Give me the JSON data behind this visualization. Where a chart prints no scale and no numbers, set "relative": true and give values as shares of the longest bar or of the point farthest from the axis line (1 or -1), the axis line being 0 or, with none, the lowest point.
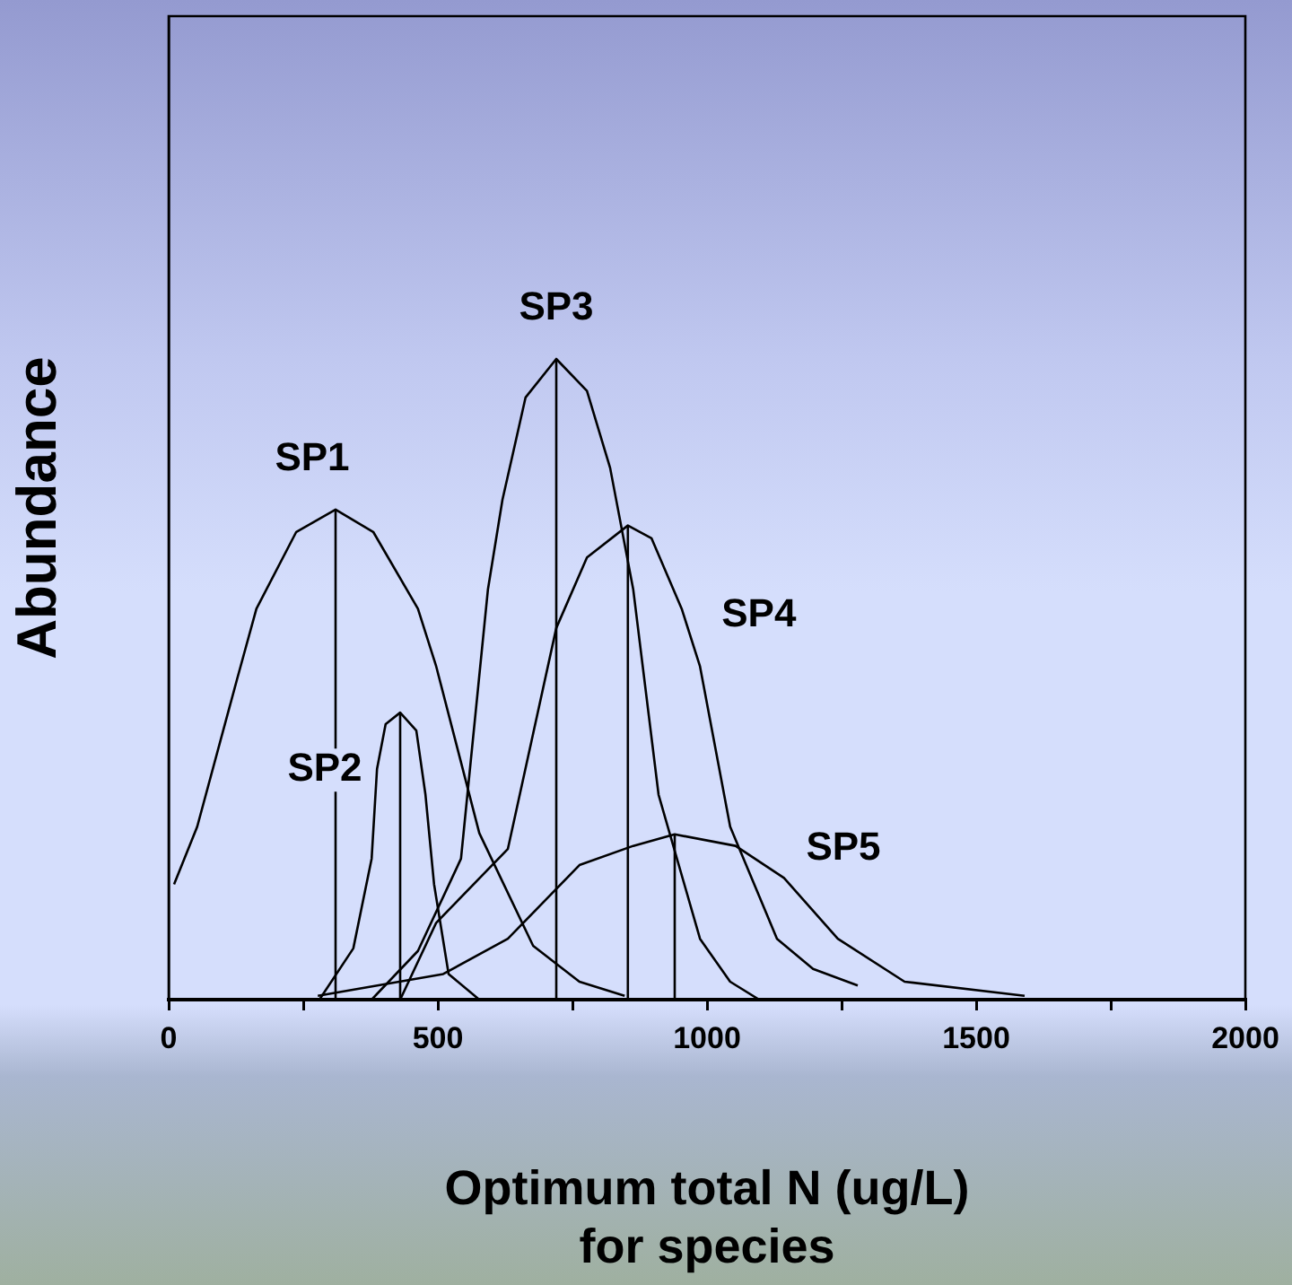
{
  "chart_data": {
    "type": "line",
    "relative": true,
    "xlabel": "Optimum total N (ug/L)\nfor species",
    "ylabel": "Abundance",
    "xlim": [
      0,
      2000
    ],
    "xticks": [
      0,
      {
        "value": 250,
        "label": null
      },
      500,
      {
        "value": 750,
        "label": null
      },
      1000,
      {
        "value": 1250,
        "label": null
      },
      1500,
      {
        "value": 1750,
        "label": null
      },
      2000
    ],
    "grid": false,
    "legend": false,
    "marker": "none",
    "line_style": "solid",
    "series": [
      {
        "name": "SP1",
        "color": "#000000",
        "x": [
          10,
          53,
          127,
          163,
          237,
          310,
          380,
          463,
          497,
          577,
          677,
          763,
          847
        ],
        "values": [
          0.18,
          0.27,
          0.5,
          0.61,
          0.73,
          0.765,
          0.73,
          0.61,
          0.52,
          0.26,
          0.084,
          0.028,
          0.006
        ]
      },
      {
        "name": "SP2",
        "color": "#000000",
        "x": [
          280,
          343,
          377,
          387,
          403,
          430,
          460,
          477,
          493,
          520,
          577
        ],
        "values": [
          0,
          0.08,
          0.22,
          0.36,
          0.43,
          0.448,
          0.42,
          0.32,
          0.18,
          0.04,
          0
        ]
      },
      {
        "name": "SP3",
        "color": "#000000",
        "x": [
          377,
          463,
          543,
          593,
          620,
          663,
          720,
          777,
          820,
          863,
          910,
          987,
          1043,
          1097
        ],
        "values": [
          0,
          0.076,
          0.22,
          0.64,
          0.78,
          0.94,
          1,
          0.95,
          0.83,
          0.64,
          0.32,
          0.095,
          0.028,
          0
        ]
      },
      {
        "name": "SP4",
        "color": "#000000",
        "x": [
          430,
          497,
          630,
          720,
          777,
          853,
          897,
          953,
          987,
          1043,
          1130,
          1197,
          1280
        ],
        "values": [
          0,
          0.12,
          0.235,
          0.58,
          0.69,
          0.74,
          0.72,
          0.61,
          0.52,
          0.27,
          0.095,
          0.048,
          0.022
        ]
      },
      {
        "name": "SP5",
        "color": "#000000",
        "x": [
          277,
          510,
          630,
          763,
          863,
          940,
          1053,
          1143,
          1243,
          1367,
          1590
        ],
        "values": [
          0.006,
          0.04,
          0.095,
          0.21,
          0.24,
          0.258,
          0.24,
          0.19,
          0.095,
          0.028,
          0.006
        ]
      },
      {
        "color": "#000000",
        "x": [
          310,
          310
        ],
        "values": [
          0,
          0.765
        ]
      },
      {
        "color": "#000000",
        "x": [
          430,
          430
        ],
        "values": [
          0,
          0.448
        ]
      },
      {
        "color": "#000000",
        "x": [
          720,
          720
        ],
        "values": [
          0,
          1
        ]
      },
      {
        "color": "#000000",
        "x": [
          853,
          853
        ],
        "values": [
          0,
          0.74
        ]
      },
      {
        "color": "#000000",
        "x": [
          940,
          940
        ],
        "values": [
          0,
          0.258
        ]
      }
    ]
  }
}
